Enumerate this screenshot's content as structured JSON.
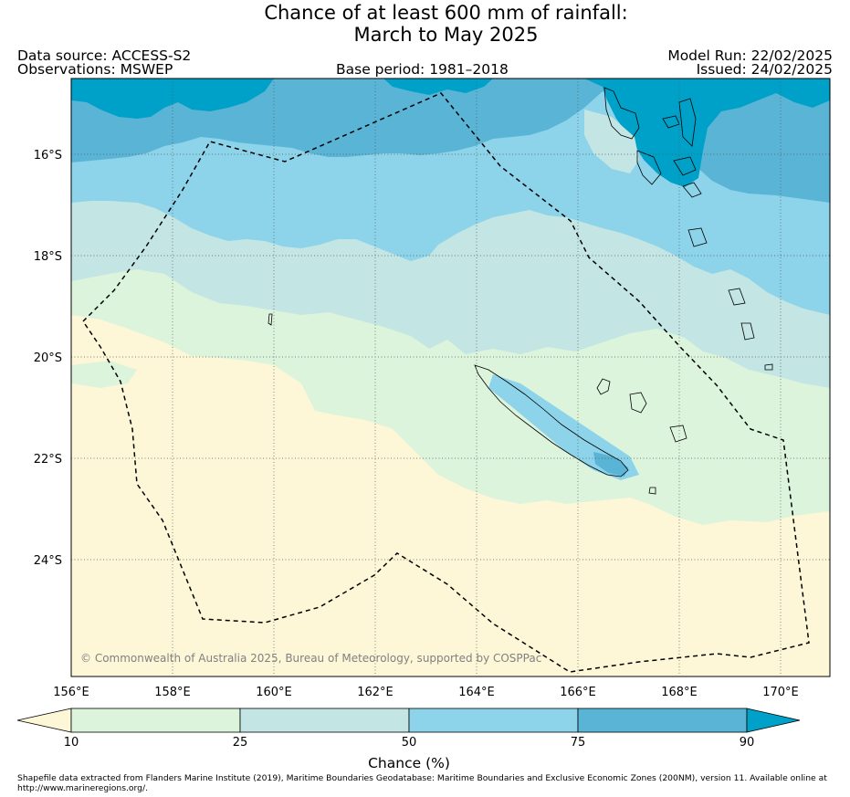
{
  "title": {
    "line1": "Chance of at least 600 mm of rainfall:",
    "line2": "March to May 2025"
  },
  "header": {
    "data_source": "Data source: ACCESS-S2",
    "observations": "Observations: MSWEP",
    "base_period": "Base period: 1981–2018",
    "model_run": "Model Run: 22/02/2025",
    "issued": "Issued: 24/02/2025"
  },
  "map": {
    "lon_range": [
      156,
      171
    ],
    "lat_range": [
      -26.2,
      -14.6
    ],
    "lon_ticks": [
      "156°E",
      "158°E",
      "160°E",
      "162°E",
      "164°E",
      "166°E",
      "168°E",
      "170°E"
    ],
    "lat_ticks": [
      "16°S",
      "18°S",
      "20°S",
      "22°S",
      "24°S"
    ],
    "copyright": "© Commonwealth of Australia 2025, Bureau of Meteorology, supported by COSPPac",
    "grid": "dotted",
    "boundary": "dashed EEZ outline"
  },
  "colorbar": {
    "ticks": [
      "10",
      "25",
      "50",
      "75",
      "90"
    ],
    "title": "Chance (%)",
    "colors": [
      "#fdf7d8",
      "#ddf4dc",
      "#c3e5e3",
      "#8dd3ea",
      "#5ab4d6",
      "#00a1c8"
    ]
  },
  "footnote": "Shapefile data extracted from Flanders Marine Institute (2019), Maritime Boundaries Geodatabase: Maritime Boundaries and Exclusive Economic Zones (200NM), version 11. Available online at http://www.marineregions.org/."
}
